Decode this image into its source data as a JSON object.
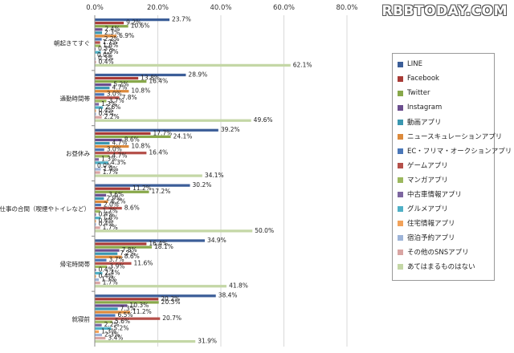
{
  "watermark": "RBBTODAY.COM",
  "chart_data": {
    "type": "bar",
    "orientation": "horizontal",
    "xlim": [
      0,
      80
    ],
    "xticks": [
      "0.0%",
      "20.0%",
      "40.0%",
      "60.0%",
      "80.0%"
    ],
    "xtick_values": [
      0,
      20,
      40,
      60,
      80
    ],
    "tick_position": "top",
    "grid": true,
    "legend_position": "right",
    "categories": [
      "朝起きてすぐ",
      "通勤時間帯",
      "お昼休み",
      "仕事の合間（喫煙やトイレなど）",
      "帰宅時間帯",
      "就寝前"
    ],
    "series": [
      {
        "name": "LINE",
        "color": "#3c5e98",
        "values": [
          23.7,
          28.9,
          39.2,
          30.2,
          34.9,
          38.4
        ]
      },
      {
        "name": "Facebook",
        "color": "#a83b36",
        "values": [
          9.2,
          13.8,
          17.7,
          11.2,
          16.4,
          20.2
        ]
      },
      {
        "name": "Twitter",
        "color": "#88a84a",
        "values": [
          10.6,
          16.4,
          24.1,
          17.2,
          18.1,
          20.3
        ]
      },
      {
        "name": "Instagram",
        "color": "#6b4e8e",
        "values": [
          2.4,
          5.2,
          8.6,
          3.6,
          7.8,
          10.3
        ]
      },
      {
        "name": "動画アプリ",
        "color": "#3a97b0",
        "values": [
          2.3,
          4.7,
          4.7,
          2.9,
          7.2,
          7.3
        ]
      },
      {
        "name": "ニュースキュレーションアプリ",
        "color": "#dc8a3c",
        "values": [
          6.9,
          10.8,
          10.8,
          4.2,
          8.6,
          11.2
        ]
      },
      {
        "name": "EC・フリマ・オークションアプリ",
        "color": "#4a77b8",
        "values": [
          2.2,
          3.0,
          3.0,
          2.0,
          3.7,
          6.5
        ]
      },
      {
        "name": "ゲームアプリ",
        "color": "#b5504a",
        "values": [
          1.7,
          7.8,
          16.4,
          8.6,
          11.6,
          20.7
        ]
      },
      {
        "name": "マンガアプリ",
        "color": "#9cb85e",
        "values": [
          1.8,
          3.7,
          4.7,
          1.7,
          3.9,
          5.6
        ]
      },
      {
        "name": "中古車情報アプリ",
        "color": "#7d66a0",
        "values": [
          0.3,
          1.3,
          1.3,
          0.4,
          0.4,
          2.2
        ]
      },
      {
        "name": "グルメアプリ",
        "color": "#4fb0c6",
        "values": [
          1.9,
          2.6,
          4.3,
          1.8,
          2.4,
          5.2
        ]
      },
      {
        "name": "住宅情報アプリ",
        "color": "#f2a25a",
        "values": [
          0.0,
          0.4,
          0.0,
          0.4,
          0.4,
          1.3
        ]
      },
      {
        "name": "宿泊予約アプリ",
        "color": "#9eb4d8",
        "values": [
          0.3,
          0.4,
          1.9,
          0.4,
          1.3,
          2.3
        ]
      },
      {
        "name": "その他のSNSアプリ",
        "color": "#d9a5a3",
        "values": [
          0.4,
          2.2,
          1.7,
          1.7,
          1.7,
          3.4
        ]
      },
      {
        "name": "あてはまるものはない",
        "color": "#c4d7a6",
        "values": [
          62.1,
          49.6,
          34.1,
          50.0,
          41.8,
          31.9
        ]
      }
    ]
  }
}
